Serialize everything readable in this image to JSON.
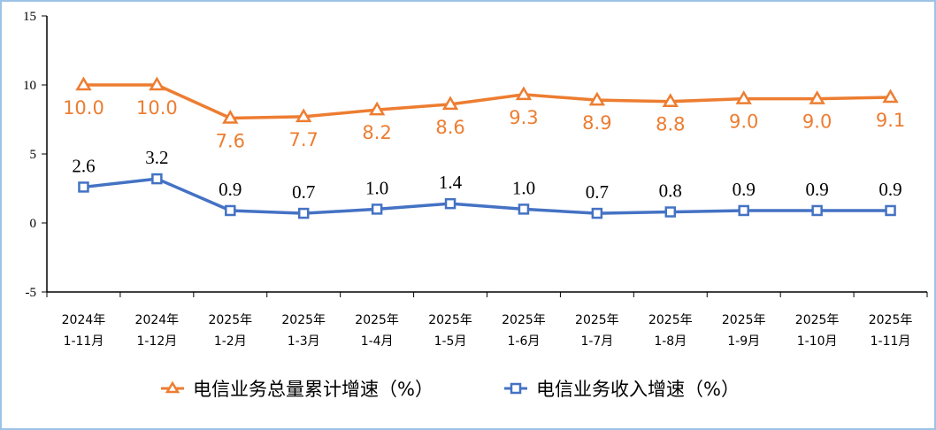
{
  "chart_data": {
    "type": "line",
    "categories": [
      [
        "2024年",
        "1-11月"
      ],
      [
        "2024年",
        "1-12月"
      ],
      [
        "2025年",
        "1-2月"
      ],
      [
        "2025年",
        "1-3月"
      ],
      [
        "2025年",
        "1-4月"
      ],
      [
        "2025年",
        "1-5月"
      ],
      [
        "2025年",
        "1-6月"
      ],
      [
        "2025年",
        "1-7月"
      ],
      [
        "2025年",
        "1-8月"
      ],
      [
        "2025年",
        "1-9月"
      ],
      [
        "2025年",
        "1-10月"
      ],
      [
        "2025年",
        "1-11月"
      ]
    ],
    "ylim": [
      -5,
      15
    ],
    "yticks": [
      -5,
      0,
      5,
      10,
      15
    ],
    "grid": false,
    "legend_placement": "bottom",
    "series": [
      {
        "name": "电信业务总量累计增速（%）",
        "color": "#ed7d31",
        "marker": "triangle",
        "values": [
          10.0,
          10.0,
          7.6,
          7.7,
          8.2,
          8.6,
          9.3,
          8.9,
          8.8,
          9.0,
          9.0,
          9.1
        ],
        "labels": [
          "10.0",
          "10.0",
          "7.6",
          "7.7",
          "8.2",
          "8.6",
          "9.3",
          "8.9",
          "8.8",
          "9.0",
          "9.0",
          "9.1"
        ]
      },
      {
        "name": "电信业务收入增速（%）",
        "color": "#4472c4",
        "marker": "square",
        "values": [
          2.6,
          3.2,
          0.9,
          0.7,
          1.0,
          1.4,
          1.0,
          0.7,
          0.8,
          0.9,
          0.9,
          0.9
        ],
        "labels": [
          "2.6",
          "3.2",
          "0.9",
          "0.7",
          "1.0",
          "1.4",
          "1.0",
          "0.7",
          "0.8",
          "0.9",
          "0.9",
          "0.9"
        ]
      }
    ]
  }
}
